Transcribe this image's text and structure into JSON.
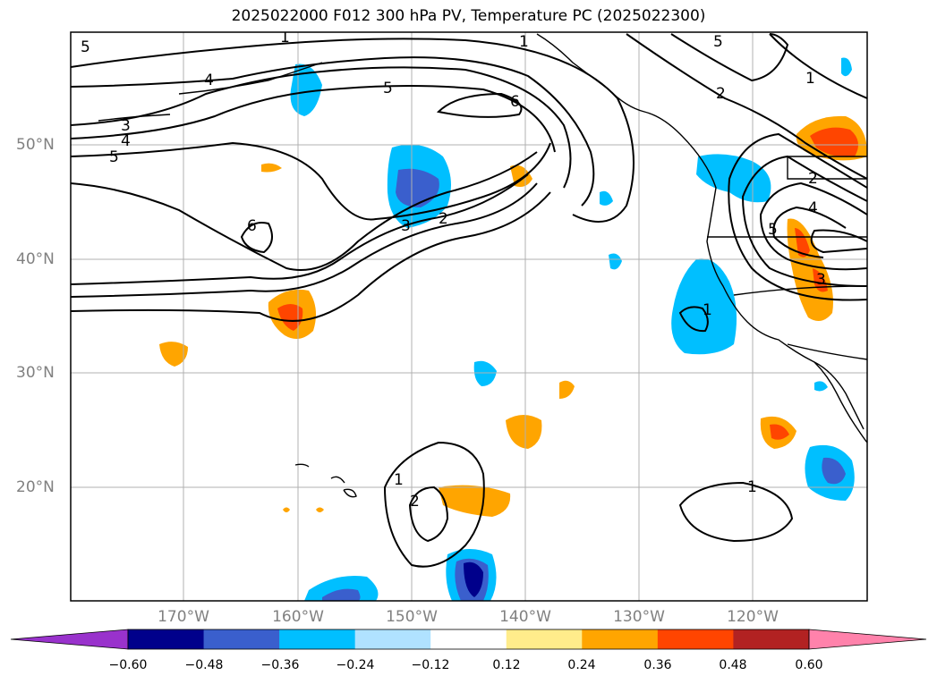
{
  "title": "2025022000 F012 300 hPa PV, Temperature PC (2025022300)",
  "lat_labels": [
    "50°N",
    "40°N",
    "30°N",
    "20°N"
  ],
  "lon_labels": [
    "170°W",
    "160°W",
    "150°W",
    "140°W",
    "130°W",
    "120°W"
  ],
  "colorbar": {
    "ticks": [
      "−0.60",
      "−0.48",
      "−0.36",
      "−0.24",
      "−0.12",
      "0.12",
      "0.24",
      "0.36",
      "0.48",
      "0.60"
    ],
    "colors": [
      "#9932cc",
      "#00008b",
      "#3a5fcd",
      "#00bfff",
      "#b0e2ff",
      "#ffffff",
      "#ffec8b",
      "#ffa500",
      "#ff4500",
      "#b22222",
      "#ff82ab"
    ]
  },
  "contour_labels": [
    "5",
    "1",
    "4",
    "3",
    "4",
    "5",
    "5",
    "6",
    "6",
    "3",
    "2",
    "1",
    "5",
    "2",
    "2",
    "4",
    "5",
    "3",
    "1",
    "1",
    "2",
    "1"
  ],
  "colors": {
    "land_outline": "#000000",
    "grid": "#b0b0b0",
    "contour": "#000000"
  }
}
